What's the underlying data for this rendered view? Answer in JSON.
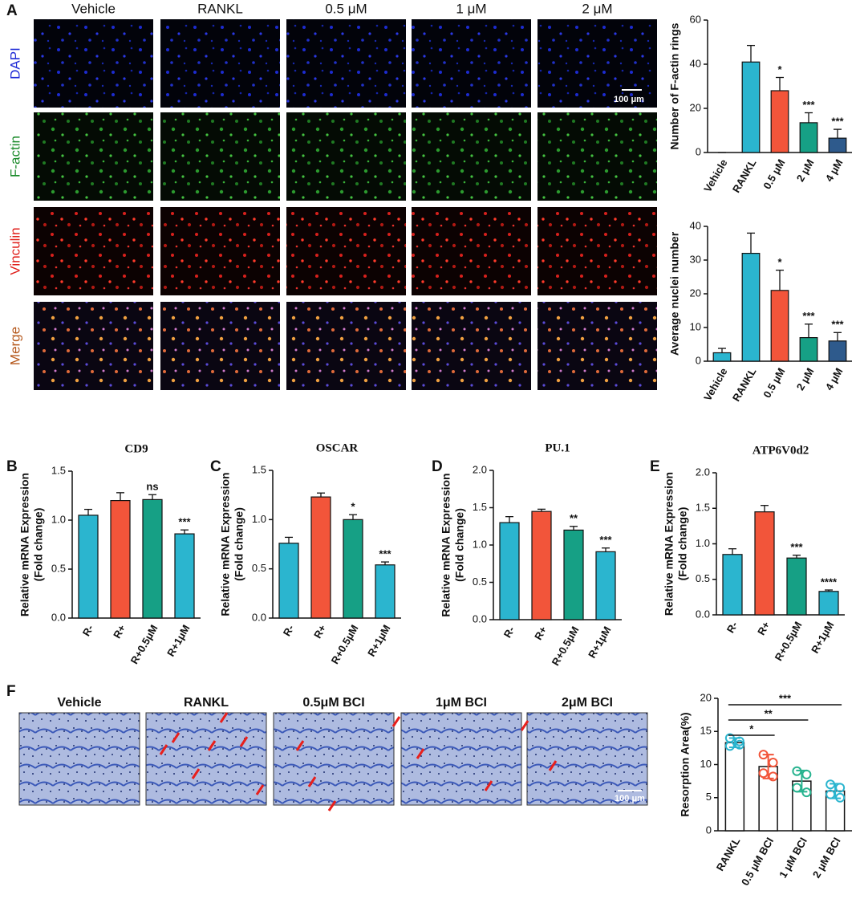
{
  "panel_labels": [
    "A",
    "B",
    "C",
    "D",
    "E",
    "F"
  ],
  "fluorescence": {
    "columns": [
      "Vehicle",
      "RANKL",
      "0.5 μM",
      "1 μM",
      "2 μM"
    ],
    "rows": [
      "DAPI",
      "F-actin",
      "Vinculin",
      "Merge"
    ],
    "row_colors": [
      "#1f2bd6",
      "#1a8a2a",
      "#e0201c",
      "#b5581c"
    ],
    "scale_bar": "100 μm"
  },
  "resorption_images": {
    "columns": [
      "Vehicle",
      "RANKL",
      "0.5μM BCI",
      "1μM BCI",
      "2μM BCI"
    ],
    "scale_bar": "100 μm"
  },
  "chart_data": [
    {
      "type": "bar",
      "y_label": "Number of F-actin rings",
      "categories": [
        "Vehicle",
        "RANKL",
        "0.5 μM",
        "2 μM",
        "4 μM"
      ],
      "values": [
        0,
        41,
        28,
        13.5,
        6.5
      ],
      "errors": [
        0,
        7.5,
        6,
        4.5,
        4
      ],
      "significance": [
        null,
        null,
        "*",
        "***",
        "***"
      ],
      "colors": [
        "#2bb5cf",
        "#2bb5cf",
        "#f2553a",
        "#16a085",
        "#2e5a8c"
      ],
      "ylim": [
        0,
        60
      ],
      "yticks": [
        0,
        20,
        40,
        60
      ]
    },
    {
      "type": "bar",
      "y_label": "Average nuclei number",
      "categories": [
        "Vehicle",
        "RANKL",
        "0.5 μM",
        "2 μM",
        "4 μM"
      ],
      "values": [
        2.5,
        32,
        21,
        7,
        6
      ],
      "errors": [
        1.3,
        6,
        6,
        4,
        2.5
      ],
      "significance": [
        null,
        null,
        "*",
        "***",
        "***"
      ],
      "colors": [
        "#2bb5cf",
        "#2bb5cf",
        "#f2553a",
        "#16a085",
        "#2e5a8c"
      ],
      "ylim": [
        0,
        40
      ],
      "yticks": [
        0,
        10,
        20,
        30,
        40
      ]
    },
    {
      "type": "bar",
      "title": "CD9",
      "y_label": [
        "Relative mRNA Expression",
        "(Fold change)"
      ],
      "categories": [
        "R-",
        "R+",
        "R+0.5μM",
        "R+1μM"
      ],
      "values": [
        1.05,
        1.2,
        1.21,
        0.86
      ],
      "errors": [
        0.06,
        0.08,
        0.05,
        0.04
      ],
      "significance": [
        null,
        null,
        "ns",
        "***"
      ],
      "colors": [
        "#2bb5cf",
        "#f2553a",
        "#16a085",
        "#2bb5cf"
      ],
      "ylim": [
        0,
        1.5
      ],
      "yticks": [
        {
          "value": 0,
          "label": "0.0"
        },
        0.5,
        {
          "value": 1,
          "label": "1.0"
        },
        1.5
      ]
    },
    {
      "type": "bar",
      "title": "OSCAR",
      "y_label": [
        "Relative mRNA Expression",
        "(Fold change)"
      ],
      "categories": [
        "R-",
        "R+",
        "R+0.5μM",
        "R+1μM"
      ],
      "values": [
        0.76,
        1.23,
        1.0,
        0.54
      ],
      "errors": [
        0.06,
        0.04,
        0.05,
        0.03
      ],
      "significance": [
        null,
        null,
        "*",
        "***"
      ],
      "colors": [
        "#2bb5cf",
        "#f2553a",
        "#16a085",
        "#2bb5cf"
      ],
      "ylim": [
        0,
        1.5
      ],
      "yticks": [
        {
          "value": 0,
          "label": "0.0"
        },
        0.5,
        {
          "value": 1,
          "label": "1.0"
        },
        1.5
      ]
    },
    {
      "type": "bar",
      "title": "PU.1",
      "y_label": [
        "Relative mRNA Expression",
        "(Fold change)"
      ],
      "categories": [
        "R-",
        "R+",
        "R+0.5μM",
        "R+1μM"
      ],
      "values": [
        1.3,
        1.45,
        1.2,
        0.91
      ],
      "errors": [
        0.08,
        0.03,
        0.05,
        0.05
      ],
      "significance": [
        null,
        null,
        "**",
        "***"
      ],
      "colors": [
        "#2bb5cf",
        "#f2553a",
        "#16a085",
        "#2bb5cf"
      ],
      "ylim": [
        0,
        2
      ],
      "yticks": [
        {
          "value": 0,
          "label": "0.0"
        },
        0.5,
        {
          "value": 1,
          "label": "1.0"
        },
        1.5,
        {
          "value": 2,
          "label": "2.0"
        }
      ]
    },
    {
      "type": "bar",
      "title": "ATP6V0d2",
      "y_label": [
        "Relative mRNA Expression",
        "(Fold change)"
      ],
      "categories": [
        "R-",
        "R+",
        "R+0.5μM",
        "R+1μM"
      ],
      "values": [
        0.85,
        1.45,
        0.8,
        0.33
      ],
      "errors": [
        0.08,
        0.09,
        0.04,
        0.02
      ],
      "significance": [
        null,
        null,
        "***",
        "****"
      ],
      "colors": [
        "#2bb5cf",
        "#f2553a",
        "#16a085",
        "#2bb5cf"
      ],
      "ylim": [
        0,
        2
      ],
      "yticks": [
        {
          "value": 0,
          "label": "0.0"
        },
        0.5,
        {
          "value": 1,
          "label": "1.0"
        },
        1.5,
        {
          "value": 2,
          "label": "2.0"
        }
      ]
    },
    {
      "type": "dotbar",
      "y_label": "Resorption Area(%)",
      "categories": [
        "RANKL",
        "0.5 μM BCI",
        "1 μM BCI",
        "2 μM BCI"
      ],
      "values": [
        13.3,
        9.7,
        7.5,
        6.0
      ],
      "errors": [
        0.7,
        1.8,
        1.6,
        1.1
      ],
      "points": [
        [
          14,
          13.5,
          12.8,
          13
        ],
        [
          11.5,
          10.3,
          8.7,
          8.2
        ],
        [
          9,
          8.5,
          6.5,
          5.8
        ],
        [
          7,
          6.5,
          5.5,
          5
        ]
      ],
      "colors": [
        "#2bb5cf",
        "#f2553a",
        "#27b38f",
        "#2bb5cf"
      ],
      "bar_color": "#ffffff",
      "ylim": [
        0,
        20
      ],
      "yticks": [
        0,
        5,
        10,
        15,
        20
      ],
      "comparisons": [
        {
          "between": [
            0,
            1
          ],
          "label": "*"
        },
        {
          "between": [
            0,
            2
          ],
          "label": "**"
        },
        {
          "between": [
            0,
            3
          ],
          "label": "***"
        }
      ]
    }
  ]
}
